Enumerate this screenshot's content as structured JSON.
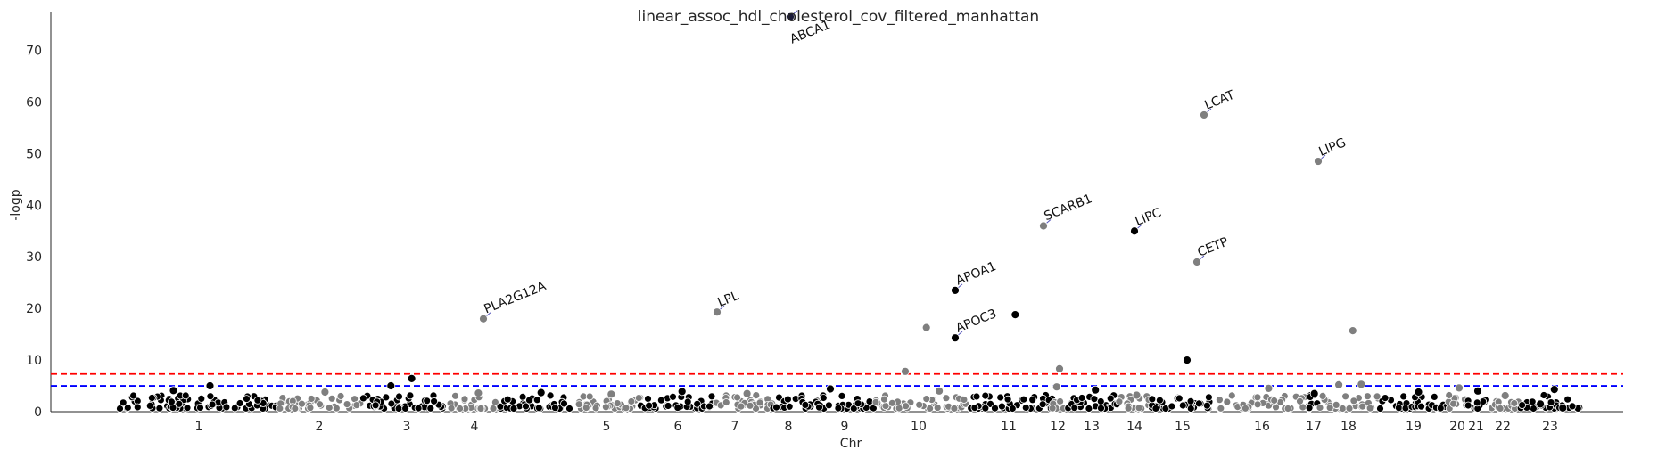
{
  "chart_data": {
    "type": "scatter",
    "title": "linear_assoc_hdl_cholesterol_cov_filtered_manhattan",
    "xlabel": "Chr",
    "ylabel": "-logp",
    "ylim": [
      0,
      77
    ],
    "yticks": [
      0,
      10,
      20,
      30,
      40,
      50,
      60,
      70
    ],
    "grid": false,
    "colors": {
      "odd_chromosome": "#000000",
      "even_chromosome": "#7f7f7f",
      "point_edge": "#ffffff",
      "arrow": "#5555bb"
    },
    "thresholds": [
      {
        "value": 7.3,
        "color": "#ff0000",
        "style": "dashed"
      },
      {
        "value": 5.0,
        "color": "#0000ff",
        "style": "dashed"
      }
    ],
    "chromosomes": [
      {
        "label": "1",
        "x": 1
      },
      {
        "label": "2",
        "x": 2
      },
      {
        "label": "3",
        "x": 3
      },
      {
        "label": "4",
        "x": 4
      },
      {
        "label": "5",
        "x": 5
      },
      {
        "label": "6",
        "x": 6
      },
      {
        "label": "7",
        "x": 7
      },
      {
        "label": "8",
        "x": 8
      },
      {
        "label": "9",
        "x": 9
      },
      {
        "label": "10",
        "x": 10
      },
      {
        "label": "11",
        "x": 11
      },
      {
        "label": "12",
        "x": 12
      },
      {
        "label": "13",
        "x": 13
      },
      {
        "label": "14",
        "x": 14
      },
      {
        "label": "15",
        "x": 15
      },
      {
        "label": "16",
        "x": 16
      },
      {
        "label": "17",
        "x": 17
      },
      {
        "label": "18",
        "x": 18
      },
      {
        "label": "19",
        "x": 19
      },
      {
        "label": "20",
        "x": 20
      },
      {
        "label": "21",
        "x": 21
      },
      {
        "label": "22",
        "x": 22
      },
      {
        "label": "23",
        "x": 23
      }
    ],
    "hits": [
      {
        "gene": "ABCA1",
        "chr": "9",
        "logp": 76.5
      },
      {
        "gene": "LCAT",
        "chr": "16",
        "logp": 57.5
      },
      {
        "gene": "LIPG",
        "chr": "18",
        "logp": 48.5
      },
      {
        "gene": "SCARB1",
        "chr": "12",
        "logp": 36.0
      },
      {
        "gene": "LIPC",
        "chr": "15",
        "logp": 35.0
      },
      {
        "gene": "CETP",
        "chr": "16",
        "logp": 29.0
      },
      {
        "gene": "APOA1",
        "chr": "11",
        "logp": 23.5
      },
      {
        "gene": "LPL",
        "chr": "8",
        "logp": 19.3
      },
      {
        "gene": "PLA2G12A",
        "chr": "4",
        "logp": 18.0
      },
      {
        "gene": "APOC3",
        "chr": "11",
        "logp": 14.3
      }
    ],
    "other_points": [
      {
        "chr": "11",
        "logp": 18.8
      },
      {
        "chr": "10",
        "logp": 16.3
      },
      {
        "chr": "18",
        "logp": 15.7
      },
      {
        "chr": "15",
        "logp": 10.0
      },
      {
        "chr": "12",
        "logp": 8.3
      },
      {
        "chr": "10",
        "logp": 7.8
      },
      {
        "chr": "3",
        "logp": 6.4
      },
      {
        "chr": "1",
        "logp": 5.0
      },
      {
        "chr": "3",
        "logp": 5.0
      },
      {
        "chr": "18",
        "logp": 5.2
      },
      {
        "chr": "18",
        "logp": 5.3
      },
      {
        "chr": "12",
        "logp": 4.8
      },
      {
        "chr": "20",
        "logp": 4.6
      },
      {
        "chr": "16",
        "logp": 4.5
      },
      {
        "chr": "9",
        "logp": 4.4
      },
      {
        "chr": "23",
        "logp": 4.3
      },
      {
        "chr": "13",
        "logp": 4.2
      },
      {
        "chr": "1",
        "logp": 4.1
      },
      {
        "chr": "10",
        "logp": 4.0
      },
      {
        "chr": "21",
        "logp": 4.0
      },
      {
        "chr": "7",
        "logp": 3.9
      },
      {
        "chr": "19",
        "logp": 3.8
      },
      {
        "chr": "5",
        "logp": 3.7
      },
      {
        "chr": "17",
        "logp": 3.5
      },
      {
        "chr": "2",
        "logp": 3.8
      },
      {
        "chr": "4",
        "logp": 3.6
      },
      {
        "chr": "6",
        "logp": 3.4
      },
      {
        "chr": "8",
        "logp": 3.5
      },
      {
        "chr": "14",
        "logp": 3.2
      },
      {
        "chr": "22",
        "logp": 3.1
      },
      {
        "chr": "23",
        "logp": 1.5
      },
      {
        "chr": "23",
        "logp": 0.7
      }
    ]
  }
}
